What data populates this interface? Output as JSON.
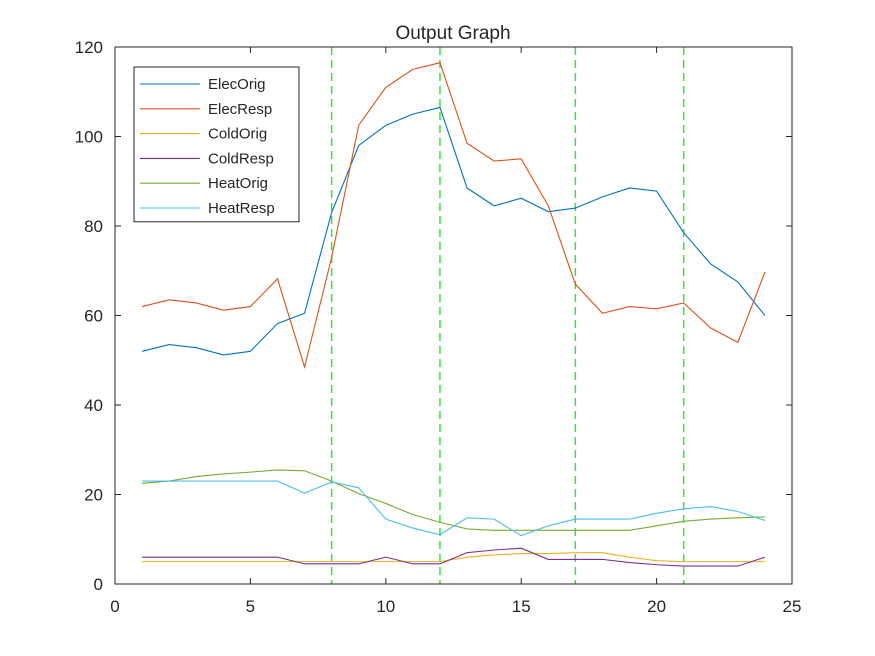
{
  "colors": {
    "background": "#ffffff",
    "axes": "#262626",
    "markers": "#33e633"
  },
  "chart_data": {
    "type": "line",
    "title": "Output Graph",
    "xlabel": "",
    "ylabel": "",
    "xlim": [
      0,
      25
    ],
    "ylim": [
      0,
      120
    ],
    "xticks": [
      0,
      5,
      10,
      15,
      20,
      25
    ],
    "yticks": [
      0,
      20,
      40,
      60,
      80,
      100,
      120
    ],
    "grid": false,
    "legend_position": "top-left",
    "x": [
      1,
      2,
      3,
      4,
      5,
      6,
      7,
      8,
      9,
      10,
      11,
      12,
      13,
      14,
      15,
      16,
      17,
      18,
      19,
      20,
      21,
      22,
      23,
      24
    ],
    "series": [
      {
        "name": "ElecOrig",
        "color": "#0072bd",
        "values": [
          52,
          53.5,
          52.8,
          51.2,
          52,
          58.2,
          60.5,
          83,
          98,
          102.5,
          105,
          106.5,
          88.5,
          84.5,
          86.2,
          83.2,
          84,
          86.5,
          88.5,
          87.8,
          78.5,
          71.5,
          67.5,
          60
        ]
      },
      {
        "name": "ElecResp",
        "color": "#d95319",
        "values": [
          62,
          63.5,
          62.8,
          61.2,
          62,
          68.2,
          48.5,
          73,
          102.5,
          111,
          115,
          116.5,
          98.5,
          94.5,
          95,
          84.5,
          67,
          60.5,
          62,
          61.5,
          62.8,
          57.2,
          54,
          69.7
        ]
      },
      {
        "name": "ColdOrig",
        "color": "#edb120",
        "values": [
          5,
          5,
          5,
          5,
          5,
          5,
          5,
          5,
          5,
          5,
          5,
          5,
          6,
          6.5,
          6.8,
          6.8,
          7,
          7,
          6,
          5.2,
          5,
          5,
          5,
          5
        ]
      },
      {
        "name": "ColdResp",
        "color": "#7e2f8e",
        "values": [
          6,
          6,
          6,
          6,
          6,
          6,
          4.5,
          4.5,
          4.5,
          6,
          4.5,
          4.5,
          7,
          7.6,
          8,
          5.5,
          5.5,
          5.5,
          4.8,
          4.3,
          4,
          4,
          4,
          6
        ]
      },
      {
        "name": "HeatOrig",
        "color": "#77ac30",
        "values": [
          22.5,
          23,
          24,
          24.6,
          25,
          25.5,
          25.3,
          23,
          20.2,
          18,
          15.5,
          13.8,
          12.3,
          12,
          12,
          12,
          12,
          12,
          12,
          13,
          14,
          14.5,
          14.8,
          15
        ]
      },
      {
        "name": "HeatResp",
        "color": "#4dbeee",
        "values": [
          23,
          23,
          23,
          23,
          23,
          23,
          20.3,
          22.8,
          21.5,
          14.5,
          12.5,
          11,
          14.8,
          14.5,
          10.8,
          13,
          14.5,
          14.5,
          14.5,
          15.8,
          16.8,
          17.3,
          16.2,
          14.2
        ]
      }
    ],
    "vertical_markers": [
      8,
      12,
      17,
      21
    ]
  }
}
